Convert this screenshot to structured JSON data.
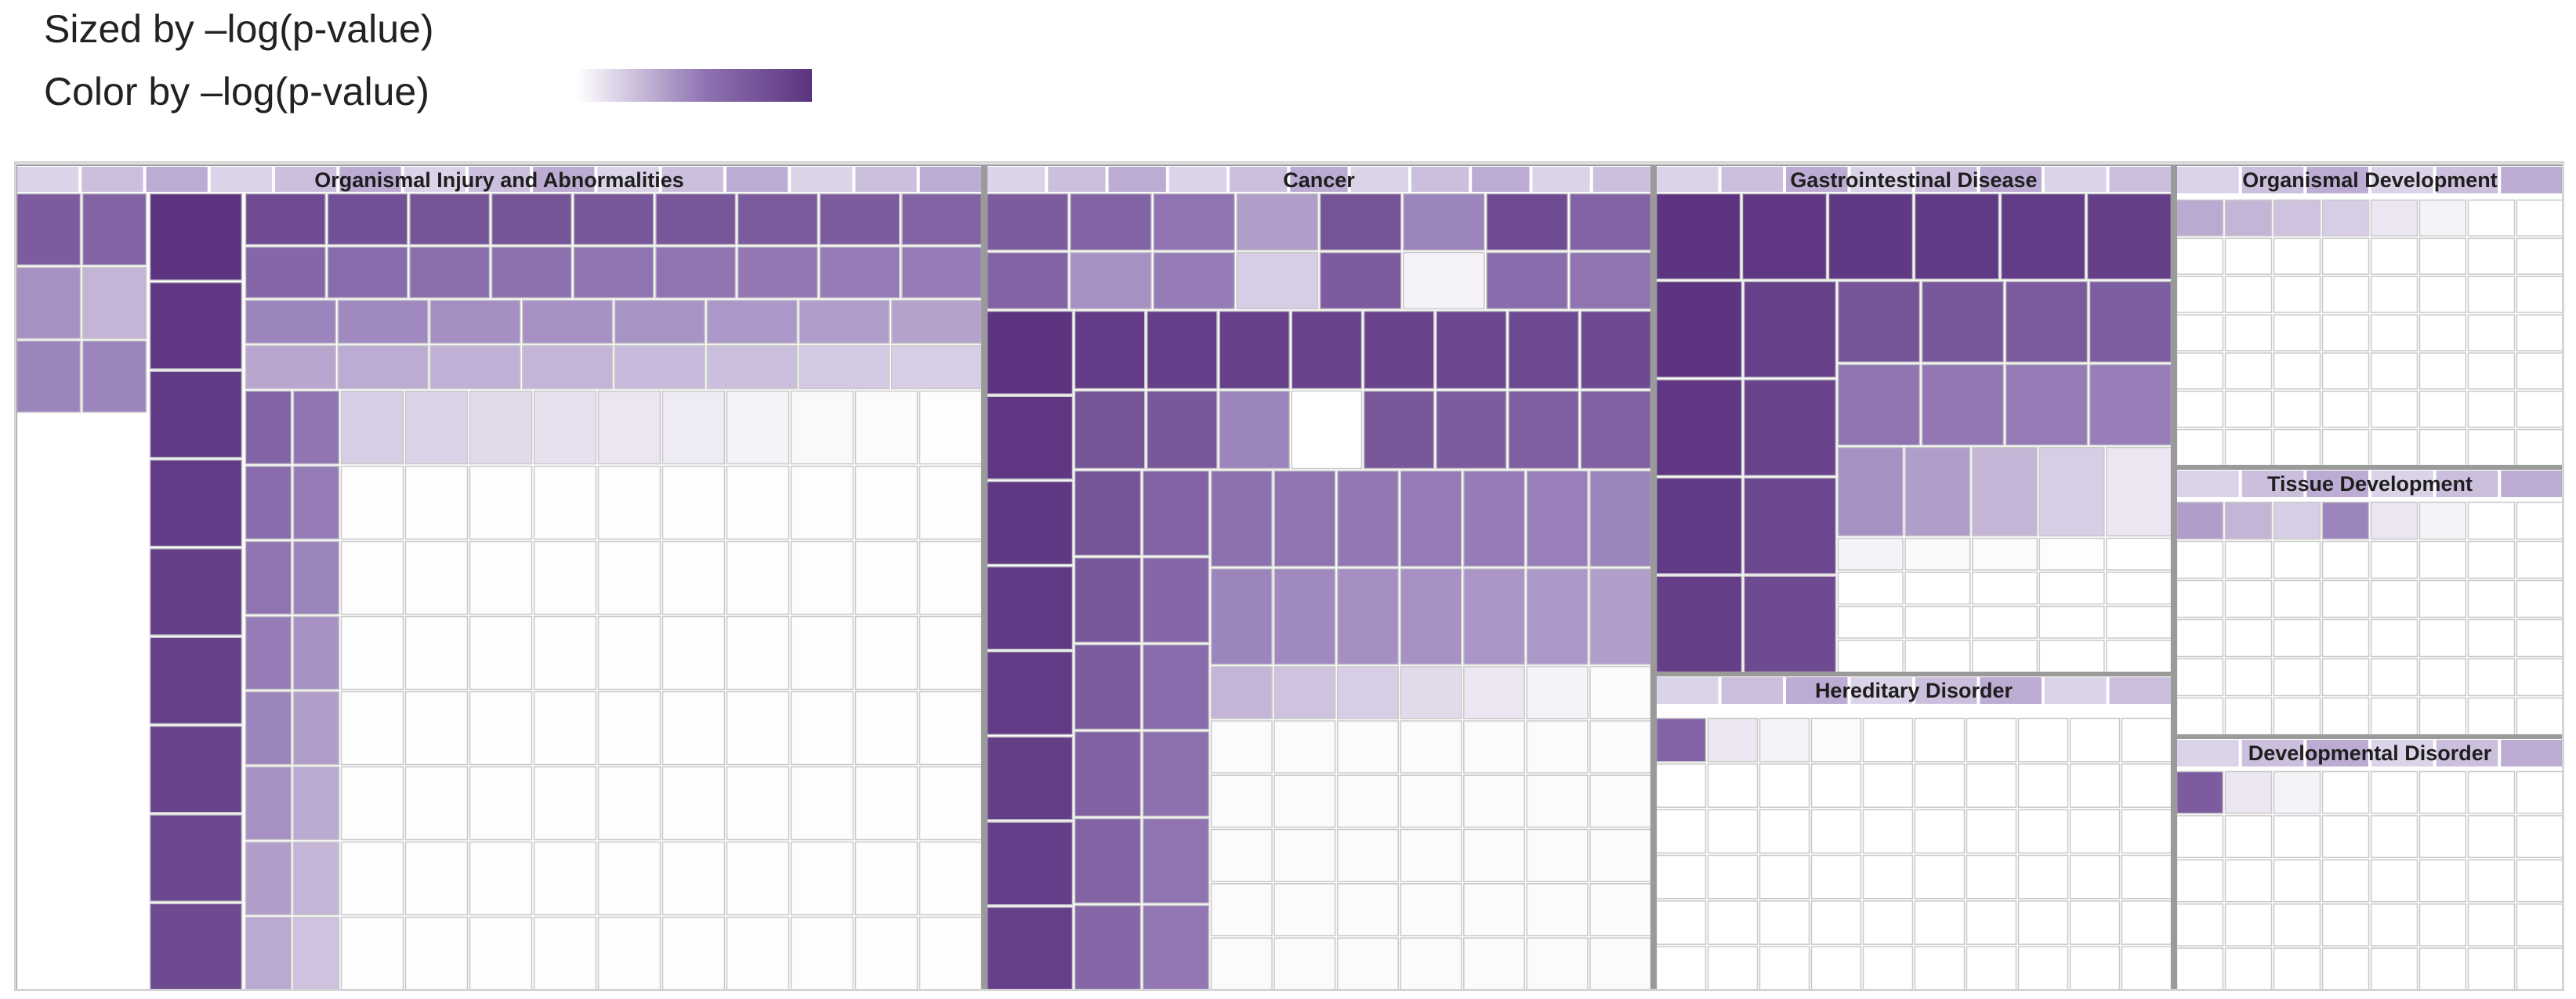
{
  "legend": {
    "size_label": "Sized by –log(p-value)",
    "color_label": "Color by –log(p-value)",
    "gradient_low_color": "#ffffff",
    "gradient_high_color": "#5b347f"
  },
  "chart_data": {
    "type": "treemap",
    "size_metric": "–log(p-value)",
    "color_metric": "–log(p-value)",
    "value_scale": "relative intensity 0 (white) to 1 (darkest purple)",
    "categories": [
      {
        "name": "Organismal Injury and Abnormalities",
        "value": 100,
        "tiles": [
          {
            "cols": 2,
            "rows": 3,
            "values": [
              0.75,
              0.7,
              0.45,
              0.3,
              0.5,
              0.5
            ]
          },
          {
            "cols": 1,
            "rows": 9,
            "values": [
              1,
              0.98,
              0.96,
              0.95,
              0.94,
              0.92,
              0.9,
              0.88,
              0.86
            ]
          },
          {
            "cols": 9,
            "rows": 2,
            "values": [
              0.85,
              0.82,
              0.8,
              0.8,
              0.78,
              0.78,
              0.76,
              0.75,
              0.7,
              0.68,
              0.65,
              0.63,
              0.62,
              0.6,
              0.6,
              0.58,
              0.55,
              0.55
            ]
          },
          {
            "cols": 8,
            "rows": 2,
            "values": [
              0.5,
              0.48,
              0.46,
              0.45,
              0.44,
              0.42,
              0.4,
              0.38,
              0.36,
              0.34,
              0.32,
              0.3,
              0.28,
              0.26,
              0.22,
              0.2
            ]
          },
          {
            "cols": 2,
            "rows": 8,
            "values": [
              0.7,
              0.6,
              0.65,
              0.55,
              0.6,
              0.5,
              0.55,
              0.45,
              0.5,
              0.4,
              0.45,
              0.35,
              0.4,
              0.3,
              0.35,
              0.25
            ]
          },
          {
            "cols": 10,
            "rows": 8,
            "values": [
              0.2,
              0.18,
              0.15,
              0.12,
              0.1,
              0.08,
              0.05,
              0.03,
              0.02,
              0.01
            ]
          }
        ]
      },
      {
        "name": "Cancer",
        "value": 70,
        "tiles": [
          {
            "cols": 8,
            "rows": 2,
            "values": [
              0.75,
              0.7,
              0.6,
              0.4,
              0.8,
              0.5,
              0.85,
              0.7,
              0.7,
              0.45,
              0.55,
              0.2,
              0.75,
              0.05,
              0.65,
              0.6
            ]
          },
          {
            "cols": 1,
            "rows": 8,
            "values": [
              1,
              0.98,
              0.97,
              0.96,
              0.95,
              0.94,
              0.93,
              0.92
            ]
          },
          {
            "cols": 8,
            "rows": 2,
            "values": [
              0.95,
              0.93,
              0.92,
              0.9,
              0.9,
              0.88,
              0.87,
              0.86,
              0.8,
              0.78,
              0.5,
              0.0,
              0.78,
              0.75,
              0.73,
              0.72
            ]
          },
          {
            "cols": 2,
            "rows": 6,
            "values": [
              0.8,
              0.7,
              0.78,
              0.68,
              0.75,
              0.65,
              0.72,
              0.62,
              0.7,
              0.6,
              0.68,
              0.58
            ]
          },
          {
            "cols": 7,
            "rows": 2,
            "values": [
              0.62,
              0.6,
              0.58,
              0.56,
              0.55,
              0.53,
              0.5,
              0.5,
              0.48,
              0.46,
              0.45,
              0.43,
              0.42,
              0.4
            ]
          },
          {
            "cols": 7,
            "rows": 6,
            "values": [
              0.3,
              0.25,
              0.2,
              0.15,
              0.1,
              0.05,
              0.02
            ]
          }
        ]
      },
      {
        "name": "Gastrointestinal Disease",
        "value": 38,
        "tiles": [
          {
            "cols": 6,
            "rows": 1,
            "values": [
              1,
              0.98,
              0.97,
              0.96,
              0.95,
              0.94
            ]
          },
          {
            "cols": 1,
            "rows": 4,
            "values": [
              1,
              0.98,
              0.96,
              0.94
            ]
          },
          {
            "cols": 1,
            "rows": 4,
            "values": [
              0.92,
              0.9,
              0.88,
              0.86
            ]
          },
          {
            "cols": 4,
            "rows": 2,
            "values": [
              0.8,
              0.78,
              0.76,
              0.74,
              0.6,
              0.58,
              0.56,
              0.54
            ]
          },
          {
            "cols": 5,
            "rows": 1,
            "values": [
              0.45,
              0.4,
              0.3,
              0.2,
              0.1
            ]
          },
          {
            "cols": 5,
            "rows": 4,
            "values": [
              0.05,
              0.03,
              0.02,
              0.01,
              0.0
            ]
          }
        ]
      },
      {
        "name": "Hereditary Disorder",
        "value": 14,
        "tiles": [
          {
            "cols": 10,
            "rows": 6,
            "values": [
              0.7,
              0.1,
              0.05,
              0.02,
              0.0
            ]
          }
        ]
      },
      {
        "name": "Organismal Development",
        "value": 12,
        "tiles": [
          {
            "cols": 8,
            "rows": 7,
            "values": [
              0.35,
              0.3,
              0.25,
              0.2,
              0.1,
              0.05,
              0.0
            ]
          }
        ]
      },
      {
        "name": "Tissue Development",
        "value": 10,
        "tiles": [
          {
            "cols": 8,
            "rows": 6,
            "values": [
              0.4,
              0.3,
              0.2,
              0.5,
              0.1,
              0.05,
              0.0
            ]
          }
        ]
      },
      {
        "name": "Developmental Disorder",
        "value": 9,
        "tiles": [
          {
            "cols": 8,
            "rows": 5,
            "values": [
              0.75,
              0.1,
              0.05,
              0.0
            ]
          }
        ]
      }
    ],
    "grid": false
  }
}
